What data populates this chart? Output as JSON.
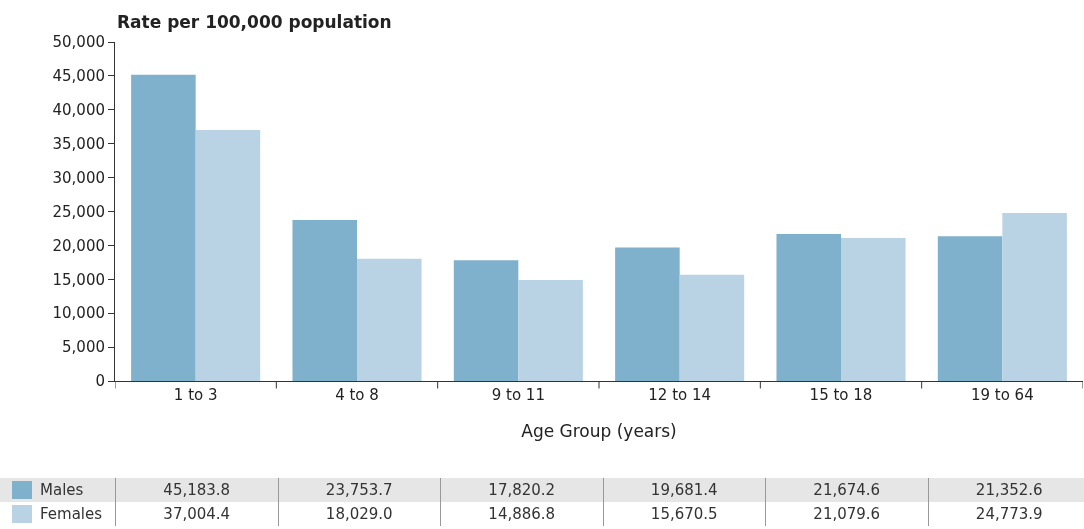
{
  "chart_data": {
    "type": "bar",
    "ylabel": "Rate per 100,000 population",
    "xlabel": "Age Group (years)",
    "categories": [
      "1 to 3",
      "4 to 8",
      "9 to 11",
      "12 to 14",
      "15 to 18",
      "19 to 64"
    ],
    "series": [
      {
        "name": "Males",
        "color": "#7fb0cc",
        "values": [
          45183.8,
          23753.7,
          17820.2,
          19681.4,
          21674.6,
          21352.6
        ],
        "value_labels": [
          "45,183.8",
          "23,753.7",
          "17,820.2",
          "19,681.4",
          "21,674.6",
          "21,352.6"
        ]
      },
      {
        "name": "Females",
        "color": "#b9d2e4",
        "values": [
          37004.4,
          18029.0,
          14886.8,
          15670.5,
          21079.6,
          24773.9
        ],
        "value_labels": [
          "37,004.4",
          "18,029.0",
          "14,886.8",
          "15,670.5",
          "21,079.6",
          "24,773.9"
        ]
      }
    ],
    "ylim": [
      0,
      50000
    ],
    "yticks": [
      0,
      {
        "value": 5000,
        "label": "5,000"
      },
      {
        "value": 10000,
        "label": "10,000"
      },
      {
        "value": 15000,
        "label": "15,000"
      },
      {
        "value": 20000,
        "label": "20,000"
      },
      {
        "value": 25000,
        "label": "25,000"
      },
      {
        "value": 30000,
        "label": "30,000"
      },
      {
        "value": 35000,
        "label": "35,000"
      },
      {
        "value": 40000,
        "label": "40,000"
      },
      {
        "value": 45000,
        "label": "45,000"
      },
      {
        "value": 50000,
        "label": "50,000"
      }
    ],
    "grid": false,
    "legend": "bottom"
  }
}
